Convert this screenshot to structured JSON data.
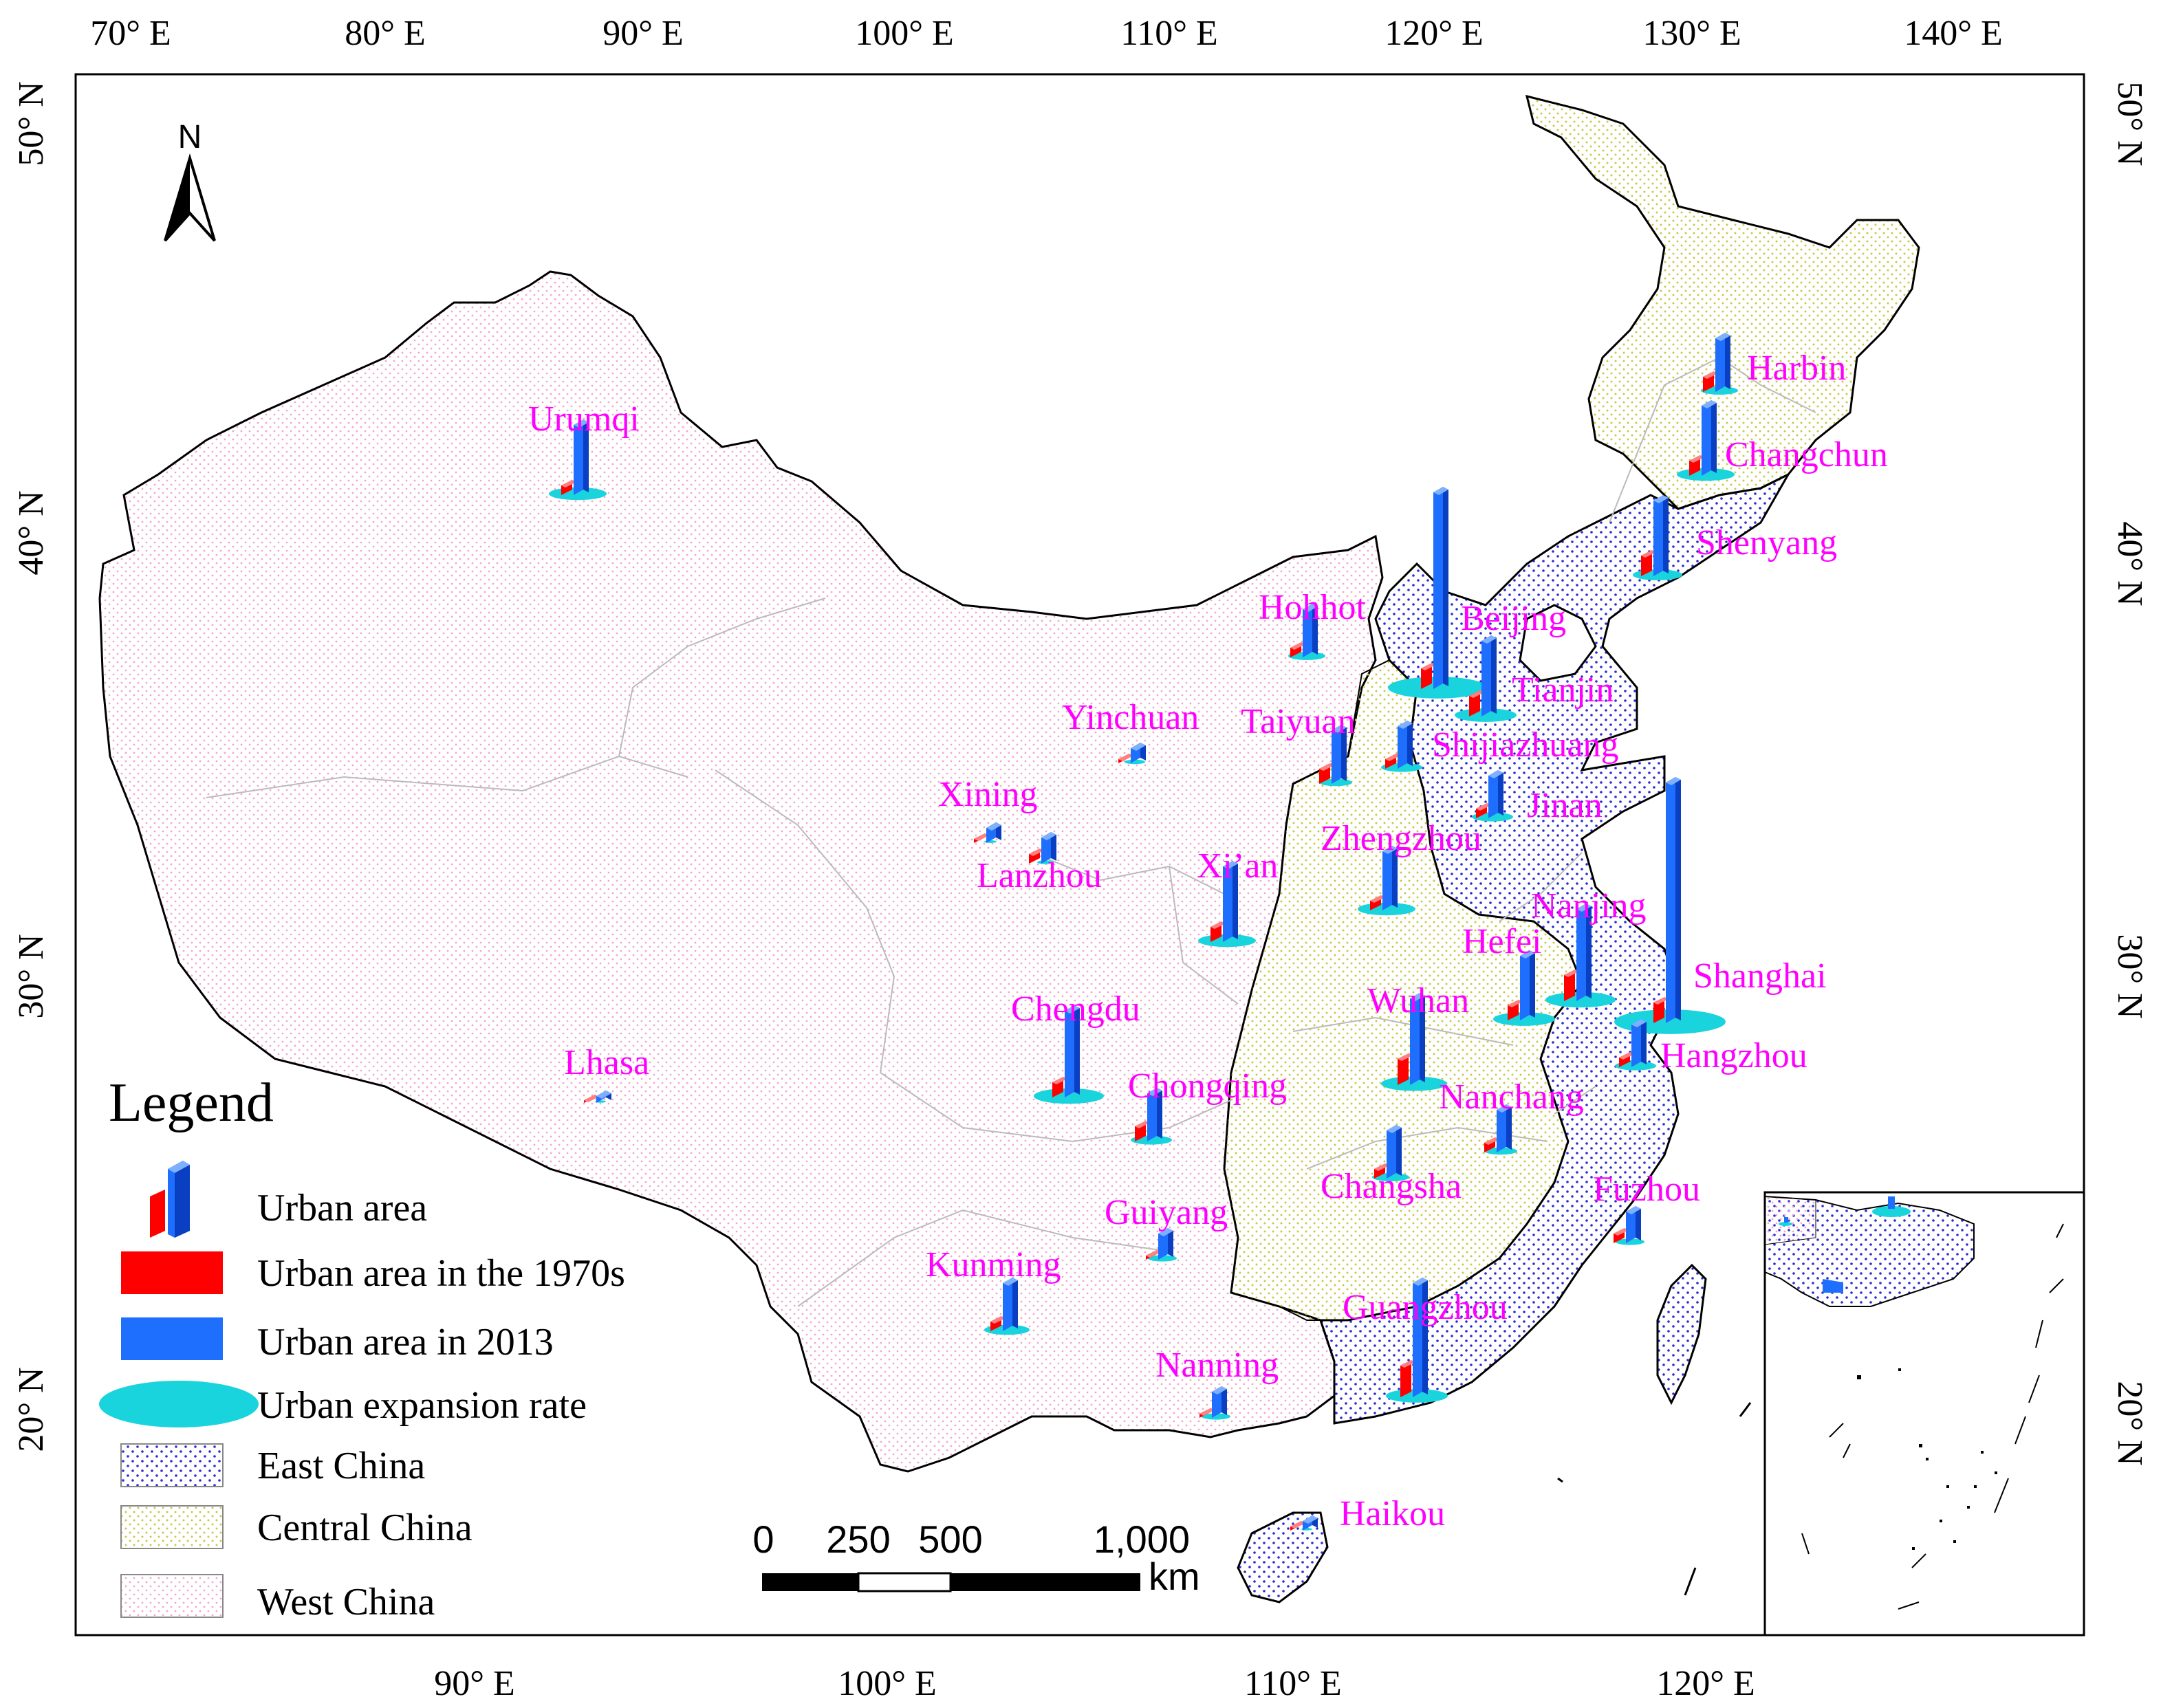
{
  "map": {
    "top_lon_ticks": [
      "70° E",
      "80° E",
      "90° E",
      "100° E",
      "110° E",
      "120° E",
      "130° E",
      "140° E"
    ],
    "bottom_lon_ticks": [
      "90° E",
      "100° E",
      "110° E",
      "120° E"
    ],
    "left_lat_ticks": [
      "50° N",
      "40° N",
      "30° N",
      "20° N"
    ],
    "right_lat_ticks": [
      "50° N",
      "40° N",
      "30° N",
      "20° N"
    ],
    "north_label": "N",
    "regions": [
      {
        "name": "East China",
        "color": "#2b2bd6"
      },
      {
        "name": "Central China",
        "color": "#c9c94a"
      },
      {
        "name": "West China",
        "color": "#f2a6cf"
      }
    ]
  },
  "cities": [
    {
      "name": "Harbin",
      "old": 0.3,
      "new": 1.0,
      "rate": 0.9
    },
    {
      "name": "Changchun",
      "old": 0.3,
      "new": 1.3,
      "rate": 1.4
    },
    {
      "name": "Shenyang",
      "old": 0.4,
      "new": 1.4,
      "rate": 1.2
    },
    {
      "name": "Urumqi",
      "old": 0.2,
      "new": 1.3,
      "rate": 1.4
    },
    {
      "name": "Hohhot",
      "old": 0.2,
      "new": 0.9,
      "rate": 0.9
    },
    {
      "name": "Beijing",
      "old": 0.4,
      "new": 3.6,
      "rate": 2.4
    },
    {
      "name": "Tianjin",
      "old": 0.4,
      "new": 1.4,
      "rate": 1.5
    },
    {
      "name": "Yinchuan",
      "old": 0.1,
      "new": 0.3,
      "rate": 0.5
    },
    {
      "name": "Taiyuan",
      "old": 0.3,
      "new": 1.0,
      "rate": 0.8
    },
    {
      "name": "Shijiazhuang",
      "old": 0.2,
      "new": 0.8,
      "rate": 1.0
    },
    {
      "name": "Xining",
      "old": 0.1,
      "new": 0.3,
      "rate": 0.3
    },
    {
      "name": "Lanzhou",
      "old": 0.2,
      "new": 0.5,
      "rate": 0.4
    },
    {
      "name": "Jinan",
      "old": 0.2,
      "new": 0.8,
      "rate": 1.0
    },
    {
      "name": "Zhengzhou",
      "old": 0.2,
      "new": 1.1,
      "rate": 1.4
    },
    {
      "name": "Xi’an",
      "old": 0.3,
      "new": 1.4,
      "rate": 1.4
    },
    {
      "name": "Nanjing",
      "old": 0.5,
      "new": 1.7,
      "rate": 1.7
    },
    {
      "name": "Hefei",
      "old": 0.3,
      "new": 1.2,
      "rate": 1.5
    },
    {
      "name": "Shanghai",
      "old": 0.4,
      "new": 4.4,
      "rate": 2.7
    },
    {
      "name": "Wuhan",
      "old": 0.5,
      "new": 1.6,
      "rate": 1.6
    },
    {
      "name": "Hangzhou",
      "old": 0.2,
      "new": 0.8,
      "rate": 1.0
    },
    {
      "name": "Chengdu",
      "old": 0.3,
      "new": 1.6,
      "rate": 1.7
    },
    {
      "name": "Lhasa",
      "old": 0.05,
      "new": 0.15,
      "rate": 0.2
    },
    {
      "name": "Chongqing",
      "old": 0.3,
      "new": 0.9,
      "rate": 1.0
    },
    {
      "name": "Nanchang",
      "old": 0.2,
      "new": 0.8,
      "rate": 0.8
    },
    {
      "name": "Changsha",
      "old": 0.2,
      "new": 0.9,
      "rate": 0.9
    },
    {
      "name": "Guiyang",
      "old": 0.1,
      "new": 0.5,
      "rate": 0.7
    },
    {
      "name": "Fuzhou",
      "old": 0.2,
      "new": 0.6,
      "rate": 0.7
    },
    {
      "name": "Kunming",
      "old": 0.2,
      "new": 0.9,
      "rate": 1.1
    },
    {
      "name": "Guangzhou",
      "old": 0.6,
      "new": 2.1,
      "rate": 1.5
    },
    {
      "name": "Nanning",
      "old": 0.1,
      "new": 0.5,
      "rate": 0.7
    },
    {
      "name": "Haikou",
      "old": 0.1,
      "new": 0.2,
      "rate": 0.2
    }
  ],
  "legend": {
    "title": "Legend",
    "items": [
      {
        "label": "Urban area",
        "color": "#1f6fff"
      },
      {
        "label": "Urban area in the 1970s",
        "color": "#ff0000"
      },
      {
        "label": "Urban area in 2013",
        "color": "#1f6fff"
      },
      {
        "label": "Urban expansion rate",
        "color": "#19d3dd"
      },
      {
        "label": "East China",
        "color": "#2b2bd6"
      },
      {
        "label": "Central China",
        "color": "#c9c94a"
      },
      {
        "label": "West China",
        "color": "#f2a6cf"
      }
    ]
  },
  "scale_bar": {
    "ticks": [
      "0",
      "250",
      "500",
      "1,000"
    ],
    "unit": "km"
  }
}
